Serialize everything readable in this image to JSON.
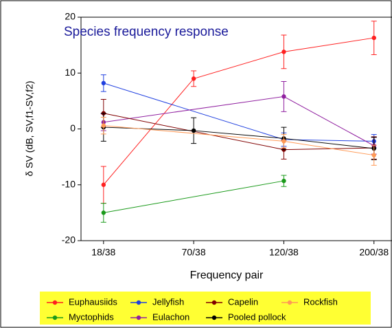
{
  "chart_data": {
    "type": "line",
    "title": "Species frequency response",
    "x_label": "Frequency pair",
    "y_label": "δ SV (dB, SV,f1-SV,f2)",
    "xlim": [
      0.75,
      4.2
    ],
    "xticks": [
      {
        "value": 1,
        "label": "18/38"
      },
      {
        "value": 2,
        "label": "70/38"
      },
      {
        "value": 3,
        "label": "120/38"
      },
      {
        "value": 4,
        "label": "200/38"
      }
    ],
    "ylim": [
      -20,
      20
    ],
    "yticks": [
      -20,
      -10,
      0,
      10,
      20
    ],
    "series": [
      {
        "name": "Euphausiids",
        "color": "#ff2020",
        "x": [
          1,
          2,
          3,
          4
        ],
        "values": [
          -10,
          9,
          13.8,
          16.3
        ],
        "errors": [
          3.3,
          1.4,
          3,
          3
        ]
      },
      {
        "name": "Myctophids",
        "color": "#1a9a1a",
        "x": [
          1,
          3
        ],
        "values": [
          -15,
          -9.3
        ],
        "errors": [
          1.7,
          1
        ]
      },
      {
        "name": "Jellyfish",
        "color": "#2040e0",
        "x": [
          1,
          3,
          4
        ],
        "values": [
          8.2,
          -1.9,
          -2.2
        ],
        "errors": [
          1.5,
          1.2,
          1.2
        ]
      },
      {
        "name": "Eulachon",
        "color": "#9020a0",
        "x": [
          1,
          3,
          4
        ],
        "values": [
          1.2,
          5.8,
          -3
        ],
        "errors": [
          1.5,
          2.7,
          1.5
        ]
      },
      {
        "name": "Capelin",
        "color": "#800000",
        "x": [
          1,
          3,
          4
        ],
        "values": [
          2.8,
          -3.7,
          -3.4
        ],
        "errors": [
          2.5,
          1.7,
          2
        ]
      },
      {
        "name": "Pooled pollock",
        "color": "#000000",
        "x": [
          1,
          2,
          3,
          4
        ],
        "values": [
          0.3,
          -0.3,
          -1.7,
          -3.5
        ],
        "errors": [
          2.5,
          2.3,
          2,
          2
        ]
      },
      {
        "name": "Rockfish",
        "color": "#ff9955",
        "x": [
          1,
          3,
          4
        ],
        "values": [
          0.6,
          -2.2,
          -4.7
        ],
        "errors": [
          1.5,
          1.2,
          1.8
        ]
      }
    ]
  }
}
